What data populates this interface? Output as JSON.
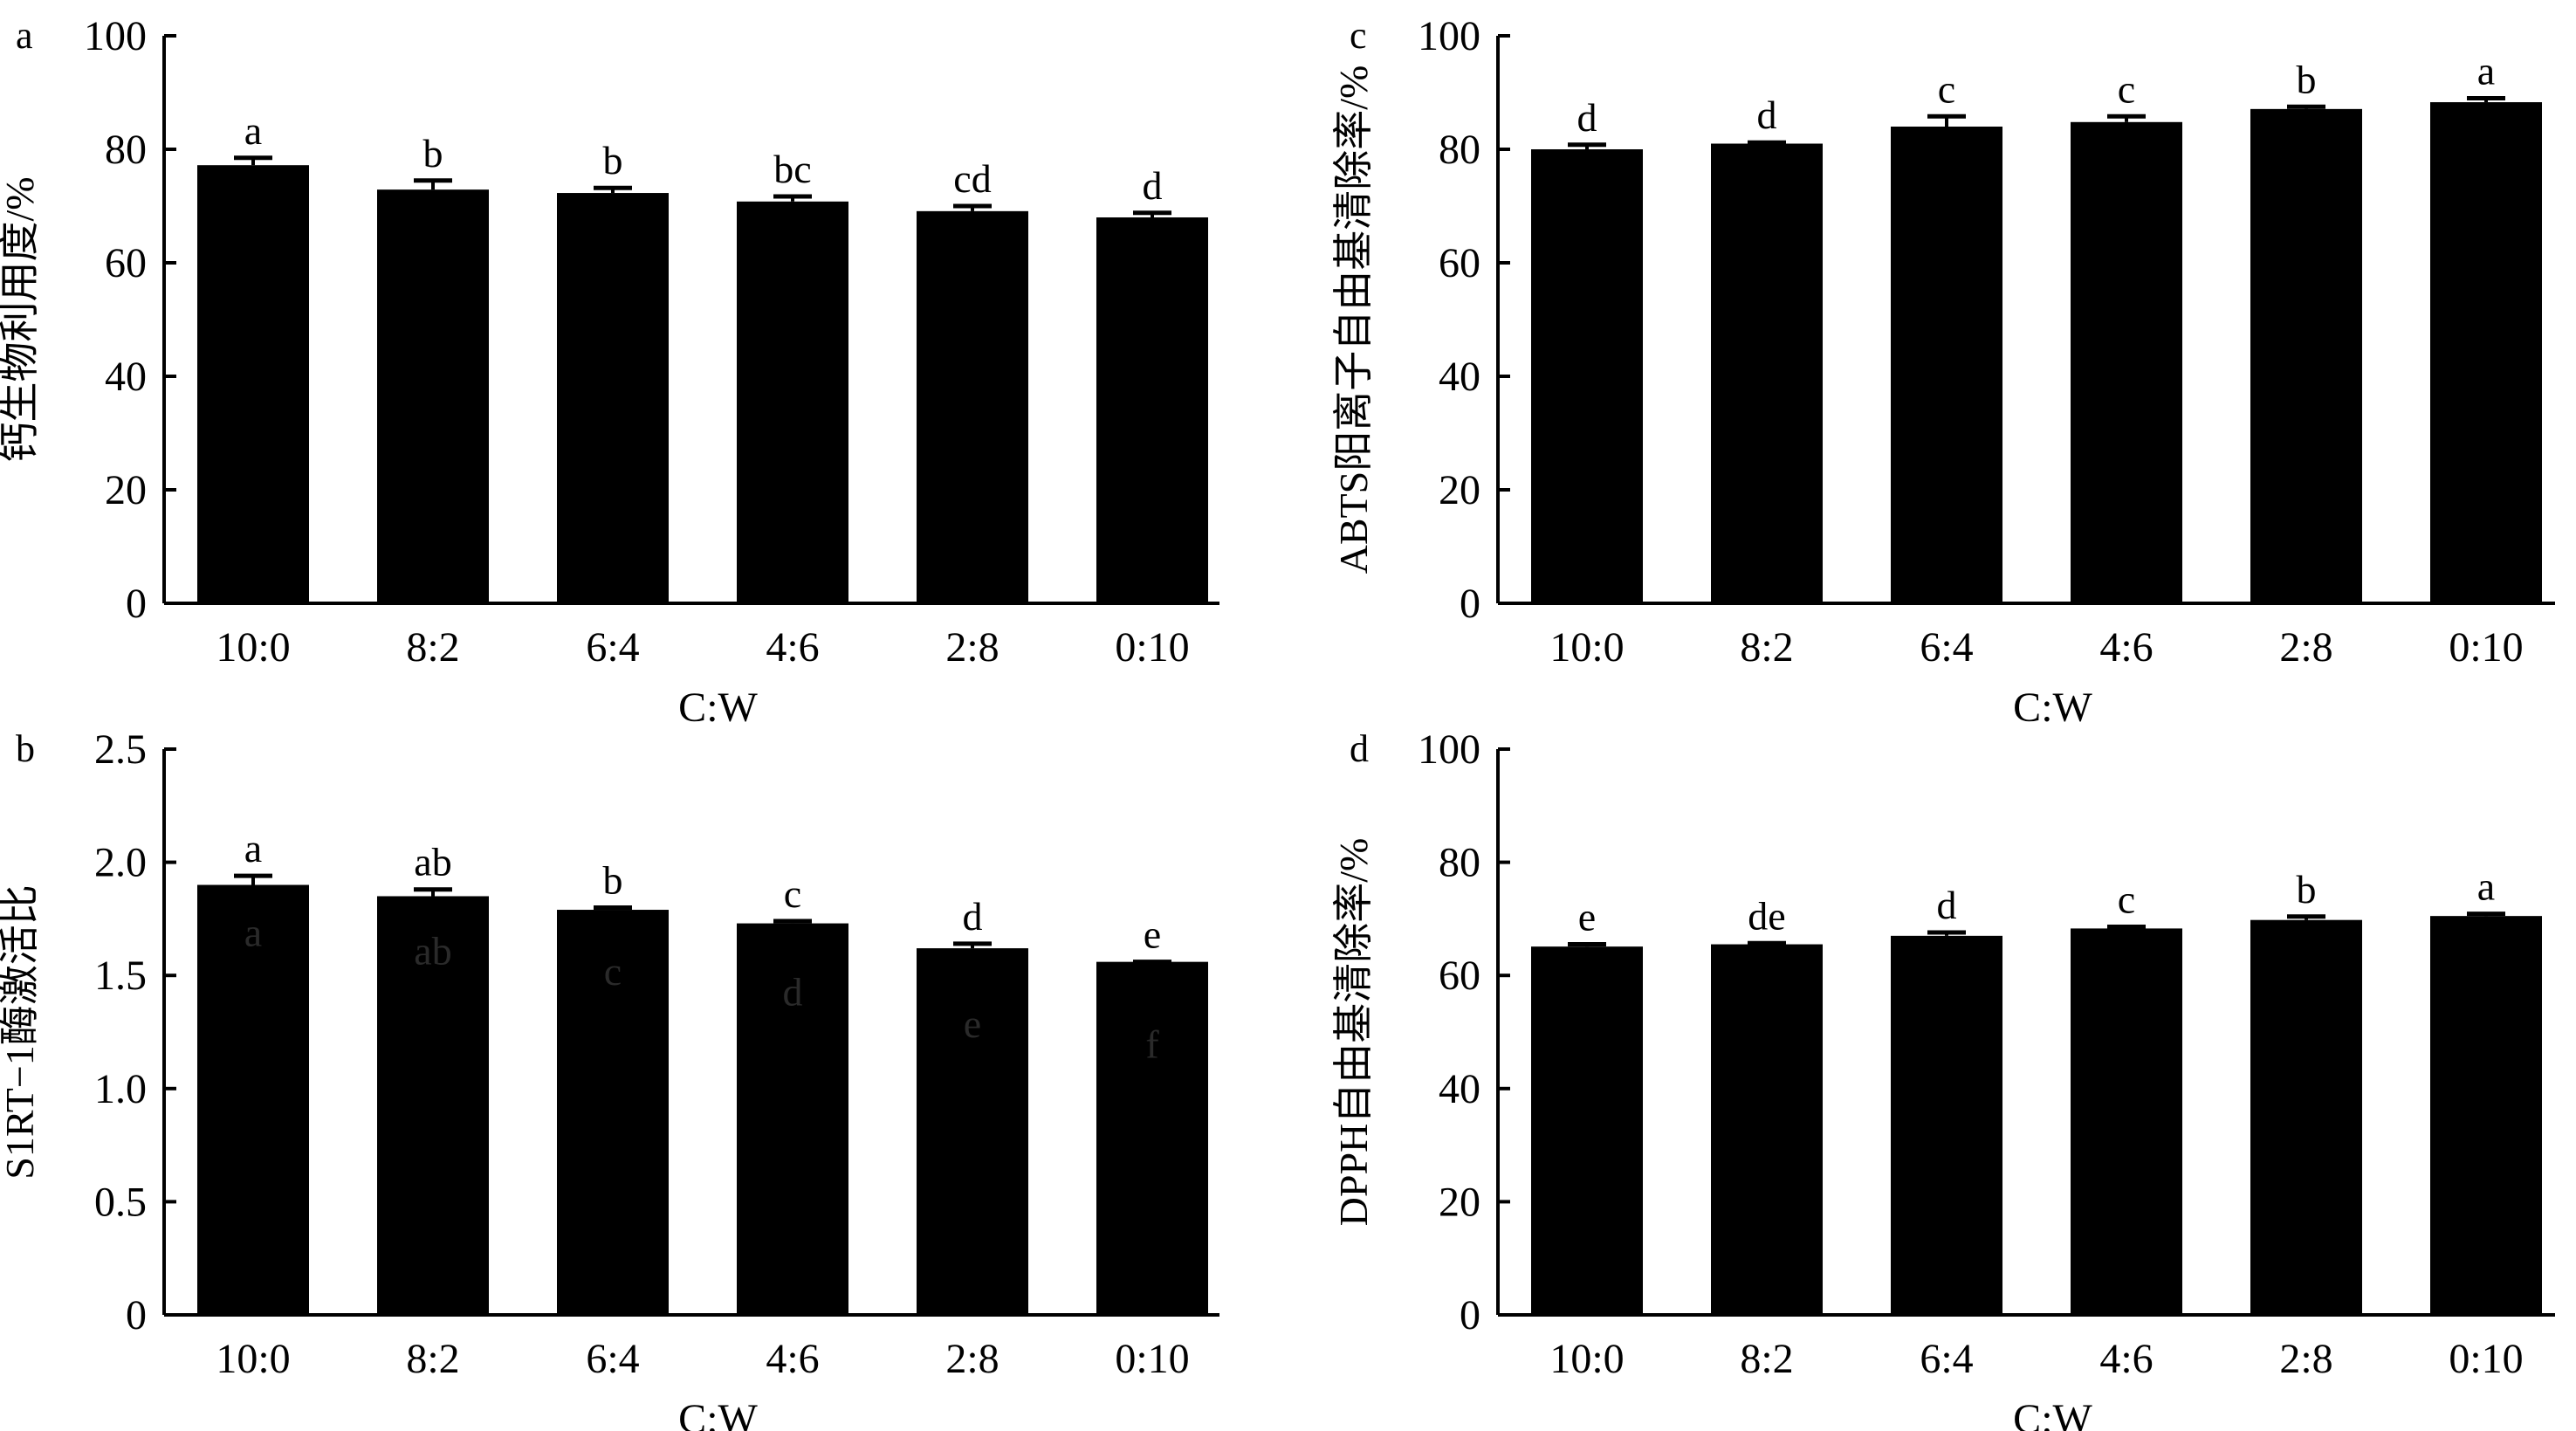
{
  "chart_data": [
    {
      "panel": "a",
      "type": "bar",
      "categories": [
        "10:0",
        "8:2",
        "6:4",
        "4:6",
        "2:8",
        "0:10"
      ],
      "values": [
        77.2,
        72.9,
        72.3,
        70.8,
        69.1,
        68.0
      ],
      "errors": [
        1.3,
        1.6,
        0.9,
        0.9,
        0.9,
        0.8
      ],
      "sig_labels": [
        "a",
        "b",
        "b",
        "bc",
        "cd",
        "d"
      ],
      "xlabel": "C:W",
      "ylabel": "钙生物利用度/%",
      "ylim": [
        0,
        100
      ],
      "yticks": [
        "0",
        "20",
        "40",
        "60",
        "80",
        "100"
      ],
      "bar_color": "#000000"
    },
    {
      "panel": "c",
      "type": "bar",
      "categories": [
        "10:0",
        "8:2",
        "6:4",
        "4:6",
        "2:8",
        "0:10"
      ],
      "values": [
        80.0,
        81.0,
        84.0,
        84.8,
        87.1,
        88.3
      ],
      "errors": [
        0.8,
        0.2,
        1.8,
        1.0,
        0.4,
        0.7
      ],
      "sig_labels": [
        "d",
        "d",
        "c",
        "c",
        "b",
        "a"
      ],
      "xlabel": "C:W",
      "ylabel": "ABTS阳离子自由基清除率/%",
      "ylim": [
        0,
        100
      ],
      "yticks": [
        "0",
        "20",
        "40",
        "60",
        "80",
        "100"
      ],
      "bar_color": "#000000"
    },
    {
      "panel": "b",
      "type": "bar",
      "categories": [
        "10:0",
        "8:2",
        "6:4",
        "4:6",
        "2:8",
        "0:10"
      ],
      "values": [
        1.9,
        1.85,
        1.79,
        1.73,
        1.62,
        1.56
      ],
      "errors": [
        0.04,
        0.03,
        0.01,
        0.01,
        0.02,
        0.0
      ],
      "sig_labels": [
        "a",
        "ab",
        "b",
        "c",
        "d",
        "e"
      ],
      "inner_labels": [
        "a",
        "ab",
        "c",
        "d",
        "e",
        "f"
      ],
      "xlabel": "C:W",
      "ylabel": "S1RT−1酶激活比",
      "ylim": [
        0,
        2.5
      ],
      "yticks": [
        "0",
        "0.5",
        "1.0",
        "1.5",
        "2.0",
        "2.5"
      ],
      "bar_color": "#000000"
    },
    {
      "panel": "d",
      "type": "bar",
      "categories": [
        "10:0",
        "8:2",
        "6:4",
        "4:6",
        "2:8",
        "0:10"
      ],
      "values": [
        65.1,
        65.5,
        67.0,
        68.3,
        69.8,
        70.5
      ],
      "errors": [
        0.4,
        0.2,
        0.6,
        0.3,
        0.6,
        0.4
      ],
      "sig_labels": [
        "e",
        "de",
        "d",
        "c",
        "b",
        "a"
      ],
      "xlabel": "C:W",
      "ylabel": "DPPH自由基清除率/%",
      "ylim": [
        0,
        100
      ],
      "yticks": [
        "0",
        "20",
        "40",
        "60",
        "80",
        "100"
      ],
      "bar_color": "#000000"
    }
  ]
}
